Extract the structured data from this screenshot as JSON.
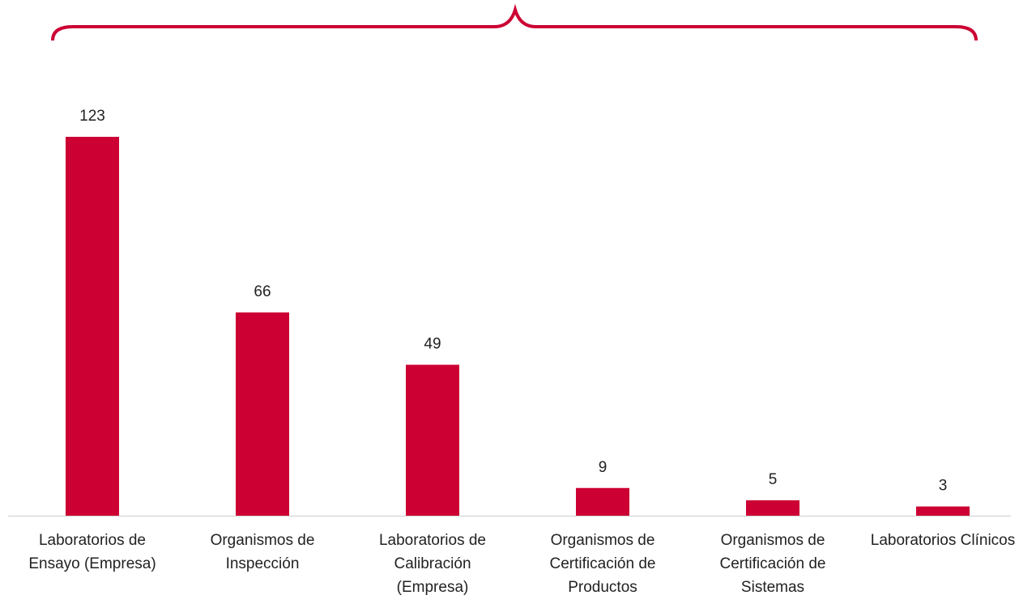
{
  "chart_data": {
    "type": "bar",
    "categories": [
      "Laboratorios de Ensayo (Empresa)",
      "Organismos de Inspección",
      "Laboratorios de Calibración (Empresa)",
      "Organismos de Certificación de Productos",
      "Organismos de Certificación de Sistemas",
      "Laboratorios Clínicos"
    ],
    "values": [
      123,
      66,
      49,
      9,
      5,
      3
    ],
    "color": "#cc0033"
  }
}
